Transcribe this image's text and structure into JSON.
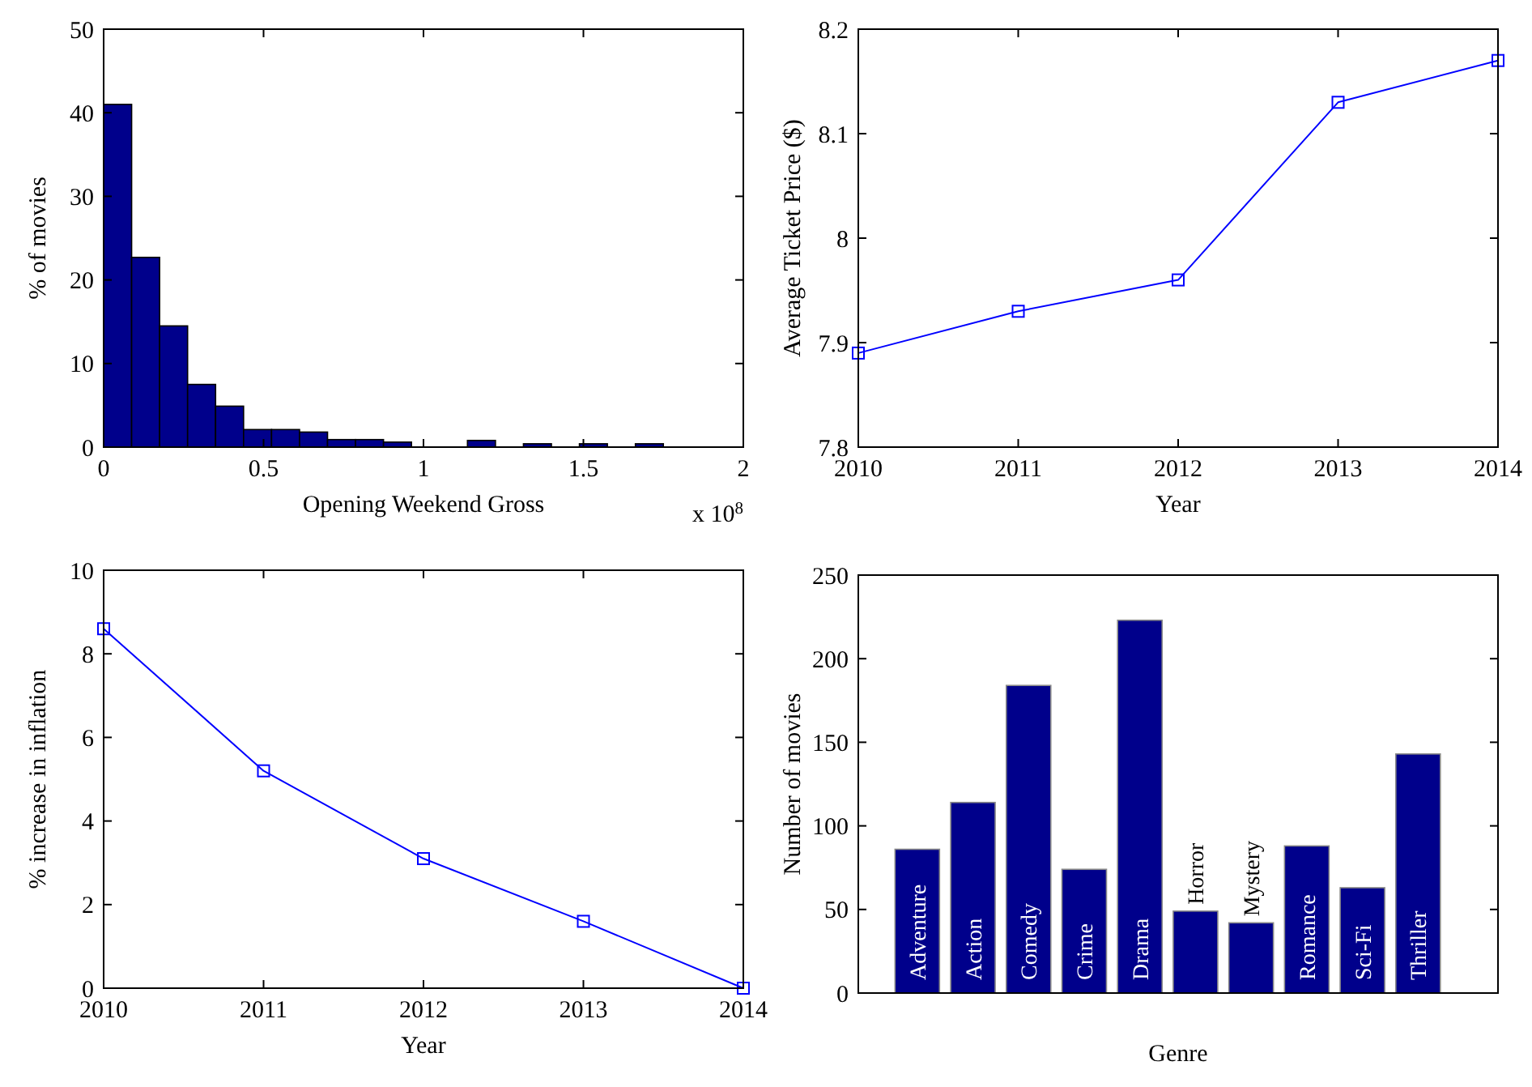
{
  "chart_data": [
    {
      "type": "histogram",
      "xlabel": "Opening Weekend Gross",
      "ylabel": "% of movies",
      "annotations": [
        "x 10$^{8}$"
      ],
      "color": "#00008b",
      "bins": [
        0,
        0.0875,
        0.175,
        0.2625,
        0.35,
        0.4375,
        0.525,
        0.6125,
        0.7,
        0.7875,
        0.875,
        0.9625,
        1.05,
        1.1375,
        1.225,
        1.3125,
        1.4,
        1.4875,
        1.575,
        1.6625,
        1.75
      ],
      "values": [
        41,
        22.7,
        14.5,
        7.5,
        4.9,
        2.1,
        2.1,
        1.8,
        0.9,
        0.9,
        0.6,
        0,
        0,
        0.8,
        0,
        0.4,
        0,
        0.4,
        0,
        0.4
      ],
      "xlim": [
        0,
        2
      ],
      "xticks": [
        0,
        0.5,
        1,
        1.5,
        2
      ],
      "ylim": [
        0,
        50
      ],
      "yticks": [
        0,
        10,
        20,
        30,
        40,
        50
      ],
      "grid": false
    },
    {
      "type": "line",
      "xlabel": "Year",
      "ylabel": "Average Ticket Price ($)",
      "x": [
        2010,
        2011,
        2012,
        2013,
        2014
      ],
      "series": [
        {
          "color": "#0000ff",
          "values": [
            7.89,
            7.93,
            7.96,
            8.13,
            8.17
          ]
        }
      ],
      "xlim": [
        2010,
        2014
      ],
      "xticks": [
        2010,
        2011,
        2012,
        2013,
        2014
      ],
      "ylim": [
        7.8,
        8.2
      ],
      "yticks": [
        7.8,
        7.9,
        8,
        8.1,
        8.2
      ],
      "marker": "square",
      "line_style": "solid",
      "grid": false
    },
    {
      "type": "line",
      "xlabel": "Year",
      "ylabel": "% increase in inflation",
      "x": [
        2010,
        2011,
        2012,
        2013,
        2014
      ],
      "series": [
        {
          "color": "#0000ff",
          "values": [
            8.6,
            5.2,
            3.1,
            1.6,
            0
          ]
        }
      ],
      "xlim": [
        2010,
        2014
      ],
      "xticks": [
        2010,
        2011,
        2012,
        2013,
        2014
      ],
      "ylim": [
        0,
        10
      ],
      "yticks": [
        0,
        2,
        4,
        6,
        8,
        10
      ],
      "marker": "square",
      "line_style": "solid",
      "grid": false
    },
    {
      "type": "bar",
      "xlabel": "Genre",
      "ylabel": "Number of movies",
      "color": "#00008b",
      "categories": [
        "Adventure",
        "Action",
        "Comedy",
        "Crime",
        "Drama",
        "Horror",
        "Mystery",
        "Romance",
        "Sci-Fi",
        "Thriller"
      ],
      "values": [
        86,
        114,
        184,
        74,
        223,
        49,
        42,
        88,
        63,
        143
      ],
      "ylim": [
        0,
        250
      ],
      "yticks": [
        0,
        50,
        100,
        150,
        200,
        250
      ],
      "grid": false
    }
  ]
}
